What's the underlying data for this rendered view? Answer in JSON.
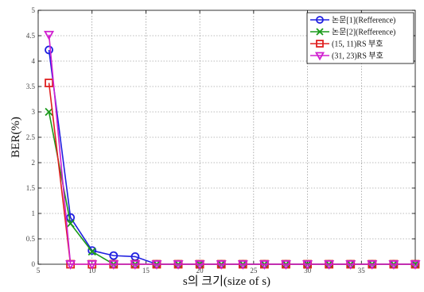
{
  "chart_data": {
    "type": "line",
    "xlabel": "s의 크기(size of s)",
    "ylabel": "BER(%)",
    "xlim": [
      5,
      40
    ],
    "ylim": [
      0,
      5
    ],
    "xticks": [
      5,
      10,
      15,
      20,
      25,
      30,
      35
    ],
    "yticks": [
      0,
      0.5,
      1,
      1.5,
      2,
      2.5,
      3,
      3.5,
      4,
      4.5,
      5
    ],
    "x": [
      6,
      8,
      10,
      12,
      14,
      16,
      18,
      20,
      22,
      24,
      26,
      28,
      30,
      32,
      34,
      36,
      38,
      40
    ],
    "grid": true,
    "legend_position": "top-right",
    "series": [
      {
        "name": "논문[1](Refference)",
        "color": "#1f1fe0",
        "marker": "circle",
        "values": [
          4.22,
          0.92,
          0.27,
          0.17,
          0.15,
          0,
          0,
          0,
          0,
          0,
          0,
          0,
          0,
          0,
          0,
          0,
          0,
          0
        ]
      },
      {
        "name": "논문[2](Refference)",
        "color": "#1a9a1a",
        "marker": "x",
        "values": [
          3.0,
          0.8,
          0.25,
          0,
          0,
          0,
          0,
          0,
          0,
          0,
          0,
          0,
          0,
          0,
          0,
          0,
          0,
          0
        ]
      },
      {
        "name": "(15, 11)RS 부호",
        "color": "#e02020",
        "marker": "square",
        "values": [
          3.57,
          0,
          0,
          0,
          0,
          0,
          0,
          0,
          0,
          0,
          0,
          0,
          0,
          0,
          0,
          0,
          0,
          0
        ]
      },
      {
        "name": "(31, 23)RS 부호",
        "color": "#d020d0",
        "marker": "triangle-down",
        "values": [
          4.52,
          0,
          0,
          0,
          0,
          0,
          0,
          0,
          0,
          0,
          0,
          0,
          0,
          0,
          0,
          0,
          0,
          0
        ]
      }
    ]
  }
}
